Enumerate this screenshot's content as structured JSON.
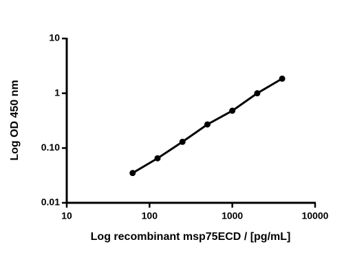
{
  "chart_data": {
    "type": "line",
    "xlabel": "Log recombinant msp75ECD / [pg/mL]",
    "ylabel": "Log OD 450 nm",
    "x": [
      62.5,
      125,
      250,
      500,
      1000,
      2000,
      4000
    ],
    "series": [
      {
        "color": "#000000",
        "values": [
          0.035,
          0.065,
          0.13,
          0.27,
          0.48,
          1.0,
          1.85
        ]
      }
    ],
    "xlim": [
      10,
      10000
    ],
    "xticks": [
      10,
      100,
      1000,
      10000
    ],
    "ylim": [
      0.01,
      10
    ],
    "yticks": [
      {
        "value": 0.01,
        "label": "0.01"
      },
      {
        "value": 0.1,
        "label": "0.10"
      },
      1,
      10
    ],
    "xscale": "log",
    "yscale": "log"
  }
}
